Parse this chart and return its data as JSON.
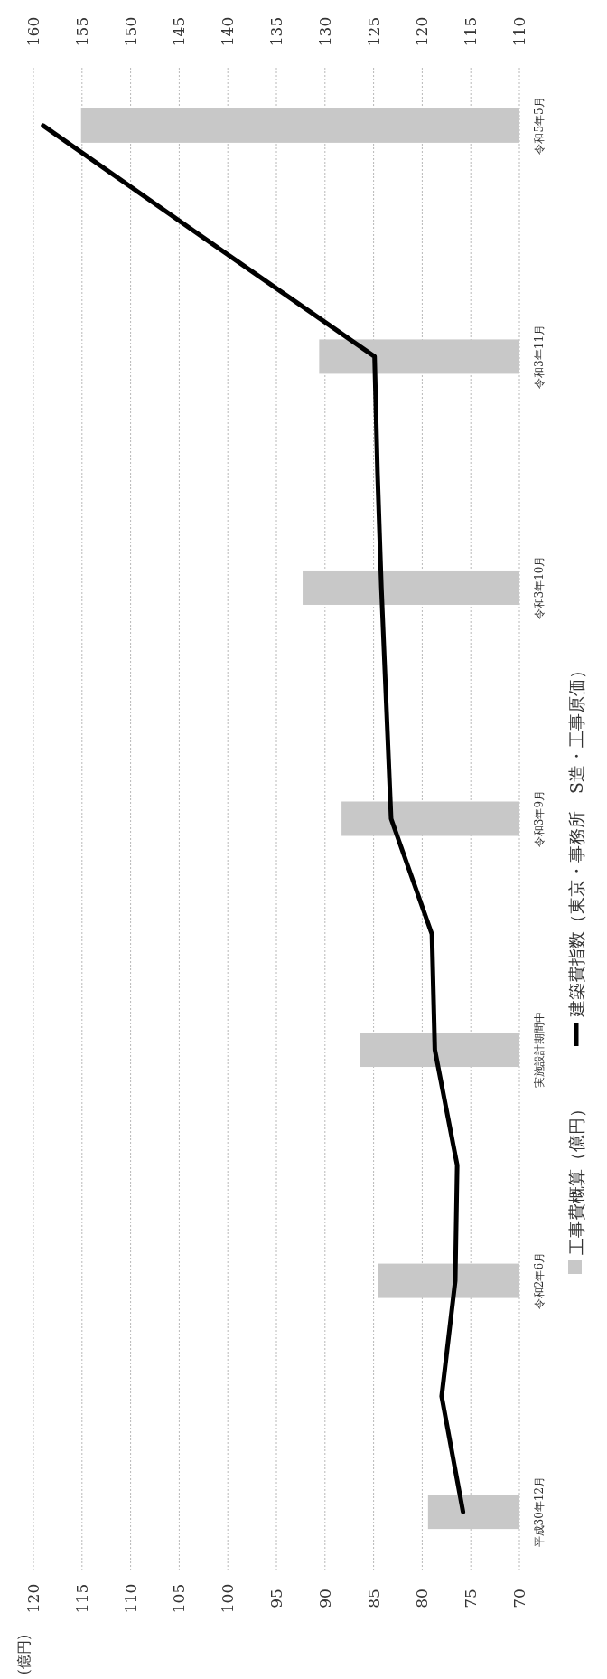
{
  "chart_data": {
    "type": "bar",
    "orientation": "horizontal",
    "annotations": [
      "(億円)"
    ],
    "categories": [
      "令和5年5月",
      null,
      "令和3年11月",
      null,
      "令和3年10月",
      null,
      "令和3年9月",
      null,
      "実施設計期間中",
      null,
      "令和2年6月",
      null,
      "平成30年12月"
    ],
    "series": [
      {
        "name": "工事費概算（億円）",
        "color": "#c8c8c8",
        "values": [
          115.1,
          null,
          90.6,
          null,
          92.3,
          null,
          88.3,
          null,
          86.4,
          null,
          84.5,
          null,
          79.4
        ]
      },
      {
        "name": "建築費指数（東京・事務所　S造・工事原価）",
        "type": "line",
        "axis": "x2",
        "color": "#000000",
        "values": [
          159.0,
          142.0,
          124.9,
          124.6,
          124.2,
          123.7,
          123.2,
          119.0,
          118.7,
          116.4,
          116.6,
          118.0,
          115.8
        ]
      }
    ],
    "xlim": [
      120,
      70
    ],
    "xticks": [
      120,
      115,
      110,
      105,
      100,
      95,
      90,
      85,
      80,
      75,
      70
    ],
    "x2lim": [
      160,
      110
    ],
    "x2ticks": [
      160,
      155,
      150,
      145,
      140,
      135,
      130,
      125,
      120,
      115,
      110
    ],
    "grid": "x",
    "legend": "right"
  }
}
